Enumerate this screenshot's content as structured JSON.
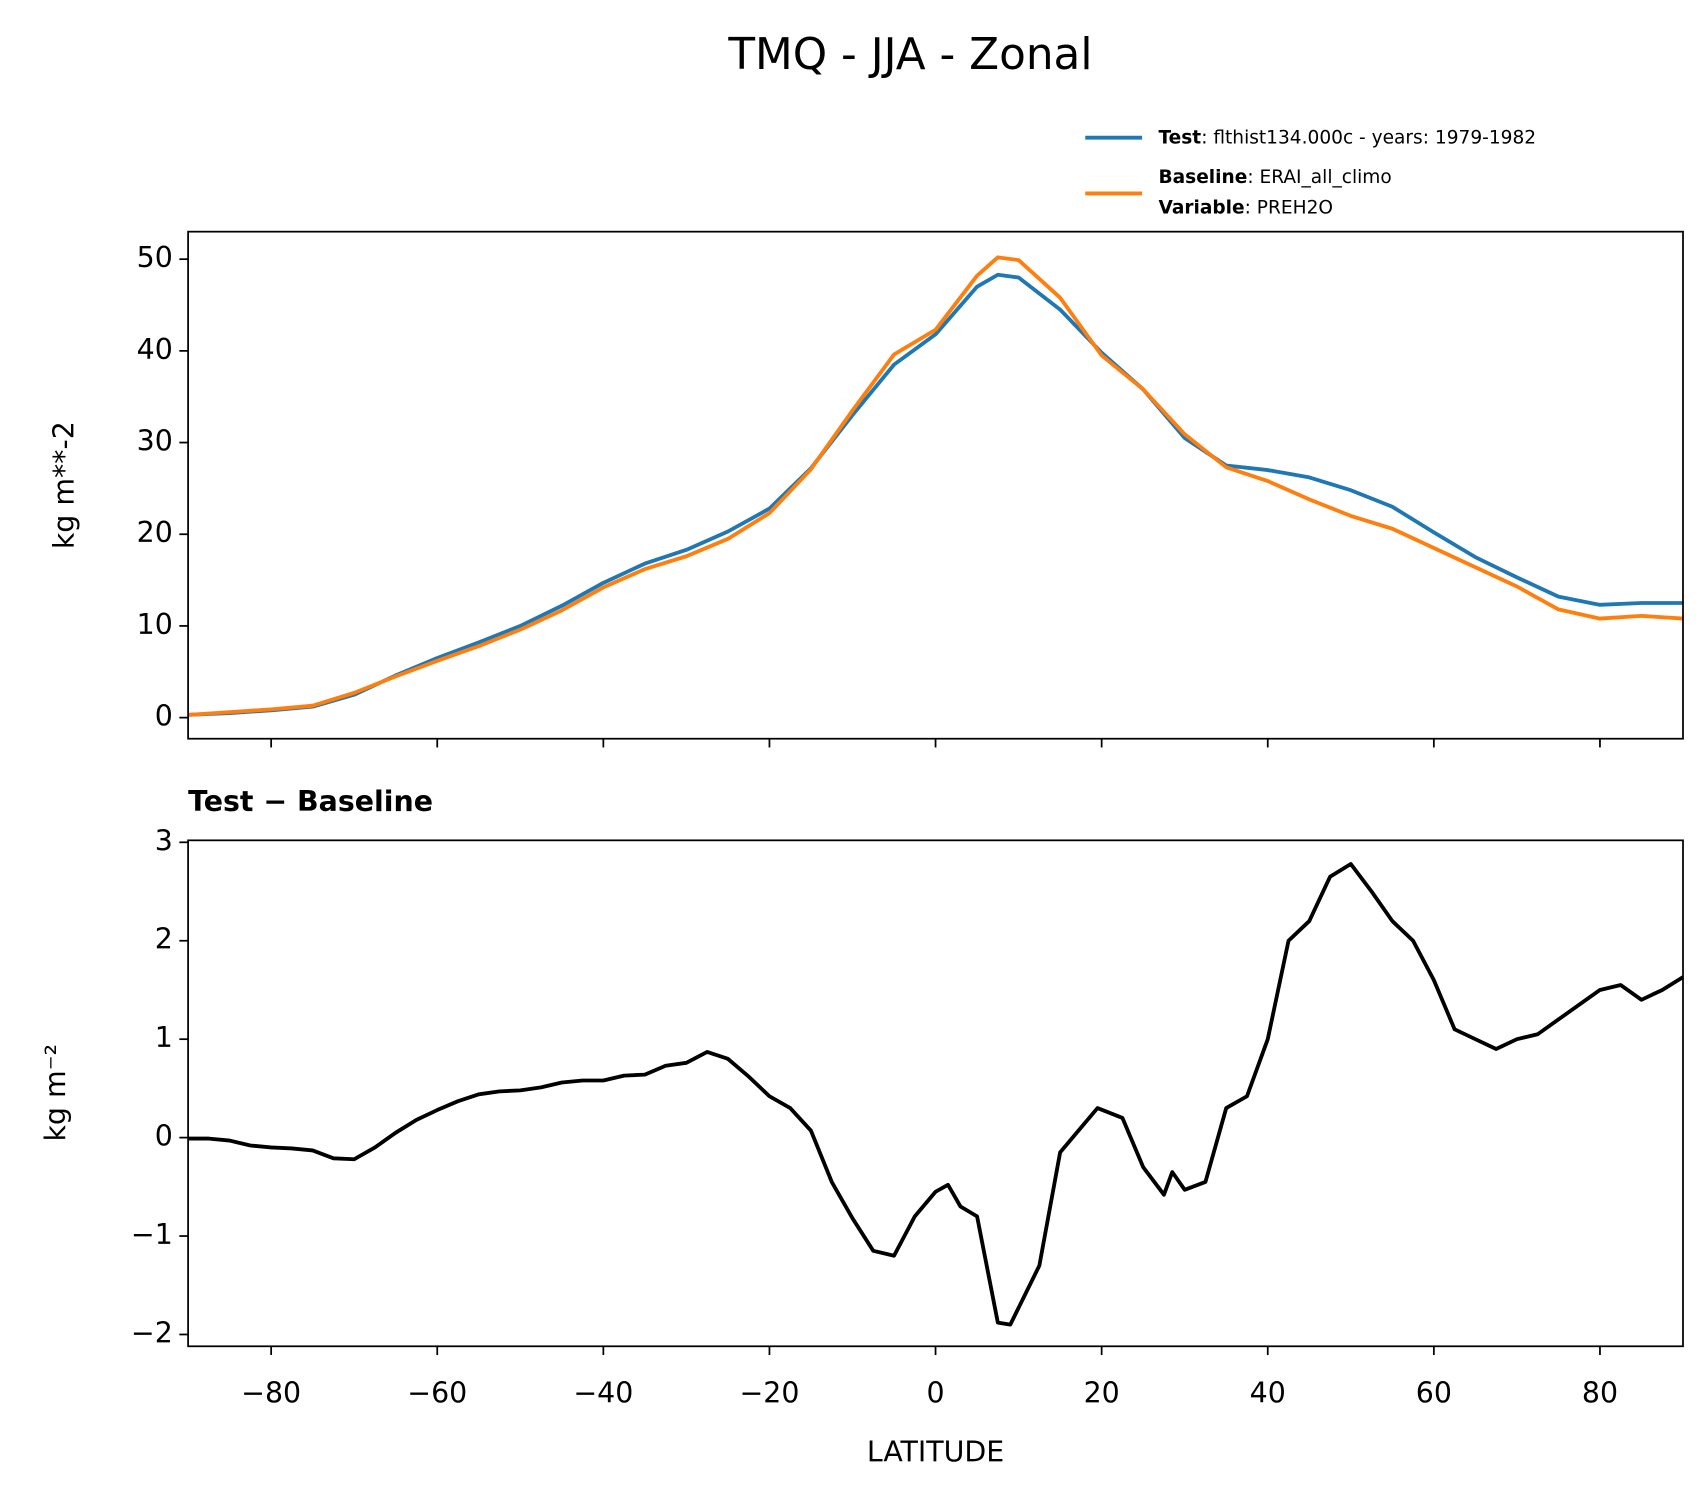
{
  "chart_data": [
    {
      "type": "line",
      "title": "TMQ - JJA - Zonal",
      "ylabel": "kg m**-2",
      "x": [
        -90,
        -85,
        -80,
        -75,
        -70,
        -65,
        -60,
        -55,
        -50,
        -45,
        -40,
        -35,
        -30,
        -25,
        -20,
        -15,
        -10,
        -5,
        0,
        5,
        7.5,
        10,
        15,
        20,
        25,
        30,
        35,
        40,
        45,
        50,
        55,
        60,
        65,
        70,
        75,
        80,
        85,
        90
      ],
      "series": [
        {
          "name": "Test",
          "detail": ": flthist134.000c - years: 1979-1982",
          "color": "#1f77b4",
          "values": [
            0.3,
            0.5,
            0.8,
            1.2,
            2.5,
            4.6,
            6.5,
            8.2,
            10.0,
            12.2,
            14.7,
            16.8,
            18.3,
            20.3,
            22.8,
            27.2,
            33,
            38.5,
            41.8,
            47.0,
            48.3,
            48,
            44.5,
            39.8,
            35.8,
            30.5,
            27.5,
            27.0,
            26.2,
            24.8,
            23.0,
            20.2,
            17.5,
            15.3,
            13.2,
            12.3,
            12.5,
            12.5
          ]
        },
        {
          "name": "Baseline",
          "detail": ": ERAI_all_climo",
          "extra_name": "Variable",
          "extra_detail": ": PREH2O",
          "color": "#ff7f0e",
          "values": [
            0.3,
            0.6,
            0.9,
            1.3,
            2.7,
            4.5,
            6.2,
            7.8,
            9.6,
            11.7,
            14.2,
            16.2,
            17.6,
            19.5,
            22.3,
            27.1,
            33.5,
            39.6,
            42.3,
            48.2,
            50.2,
            49.9,
            45.8,
            39.5,
            35.8,
            30.9,
            27.3,
            25.8,
            23.8,
            22.0,
            20.6,
            18.5,
            16.4,
            14.3,
            11.8,
            10.8,
            11.1,
            10.8
          ]
        }
      ],
      "xlim": [
        -90,
        90
      ],
      "ylim": [
        -2.3,
        53
      ],
      "xticks": [
        -80,
        -60,
        -40,
        -20,
        0,
        20,
        40,
        60,
        80
      ],
      "yticks": [
        0,
        10,
        20,
        30,
        40,
        50
      ]
    },
    {
      "type": "line",
      "title": "Test − Baseline",
      "ylabel": "kg m⁻²",
      "xlabel": "LATITUDE",
      "color": "#000000",
      "x": [
        -90,
        -87.5,
        -85,
        -82.5,
        -80,
        -77.5,
        -75,
        -72.5,
        -70,
        -67.5,
        -65,
        -62.5,
        -60,
        -57.5,
        -55,
        -52.5,
        -50,
        -47.5,
        -45,
        -42.5,
        -40,
        -37.5,
        -35,
        -32.5,
        -30,
        -27.5,
        -25,
        -22.5,
        -20,
        -17.5,
        -15,
        -12.5,
        -10,
        -7.5,
        -5,
        -2.5,
        0,
        1.5,
        3,
        5,
        7.5,
        9,
        12.5,
        15,
        17.5,
        19.5,
        22.5,
        25,
        27.5,
        28.5,
        30,
        32.5,
        35,
        37.5,
        40,
        42.5,
        45,
        47.5,
        50,
        52.5,
        55,
        57.5,
        60,
        62.5,
        65,
        67.5,
        70,
        72.5,
        75,
        77.5,
        80,
        82.5,
        85,
        87.5,
        90
      ],
      "values": [
        -0.01,
        -0.01,
        -0.03,
        -0.08,
        -0.1,
        -0.11,
        -0.13,
        -0.21,
        -0.22,
        -0.1,
        0.05,
        0.18,
        0.28,
        0.37,
        0.44,
        0.47,
        0.48,
        0.51,
        0.56,
        0.58,
        0.58,
        0.63,
        0.64,
        0.73,
        0.76,
        0.87,
        0.8,
        0.62,
        0.42,
        0.3,
        0.07,
        -0.45,
        -0.82,
        -1.15,
        -1.2,
        -0.8,
        -0.55,
        -0.48,
        -0.7,
        -0.8,
        -1.88,
        -1.9,
        -1.3,
        -0.15,
        0.1,
        0.3,
        0.2,
        -0.3,
        -0.58,
        -0.35,
        -0.53,
        -0.45,
        0.3,
        0.42,
        1.0,
        2.0,
        2.2,
        2.65,
        2.78,
        2.5,
        2.2,
        2.0,
        1.6,
        1.1,
        1.0,
        0.9,
        1.0,
        1.05,
        1.2,
        1.35,
        1.5,
        1.55,
        1.4,
        1.5,
        1.63
      ],
      "xlim": [
        -90,
        90
      ],
      "ylim": [
        -2.12,
        3.02
      ],
      "xticks": [
        {
          "value": -80,
          "label": "−80"
        },
        {
          "value": -60,
          "label": "−60"
        },
        {
          "value": -40,
          "label": "−40"
        },
        {
          "value": -20,
          "label": "−20"
        },
        0,
        20,
        40,
        60,
        80
      ],
      "yticks": [
        {
          "value": -2,
          "label": "−2"
        },
        {
          "value": -1,
          "label": "−1"
        },
        0,
        1,
        2,
        3
      ]
    }
  ]
}
